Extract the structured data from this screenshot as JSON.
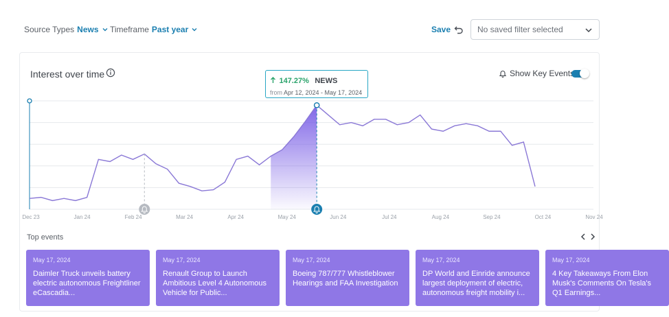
{
  "filters": {
    "source": {
      "label": "Source Types",
      "value": "News"
    },
    "timeframe": {
      "label": "Timeframe",
      "value": "Past year"
    }
  },
  "save_label": "Save",
  "saved_filter": {
    "value": "No saved filter selected"
  },
  "card": {
    "title": "Interest over time",
    "key_events_label": "Show Key Events",
    "key_events_enabled": true
  },
  "tooltip": {
    "change": "147.27%",
    "source": "NEWS",
    "from_label": "from",
    "range": "Apr 12, 2024 - May 17, 2024"
  },
  "chart_data": {
    "type": "line",
    "x_ticks": [
      "Dec 23",
      "Jan 24",
      "Feb 24",
      "Mar 24",
      "Apr 24",
      "May 24",
      "Jun 24",
      "Jul 24",
      "Aug 24",
      "Sep 24",
      "Oct 24",
      "Nov 24"
    ],
    "ylim": [
      0,
      100
    ],
    "grid": true,
    "series": [
      {
        "values": [
          10,
          11,
          8,
          10,
          8,
          11,
          46,
          44,
          50,
          46,
          51,
          42,
          37,
          24,
          21,
          17,
          18,
          25,
          46,
          49,
          41,
          49,
          55,
          67,
          81,
          96,
          87,
          78,
          80,
          77,
          83,
          83,
          78,
          80,
          87,
          74,
          72,
          77,
          79,
          77,
          72,
          72,
          59,
          62,
          21
        ]
      }
    ],
    "highlight_range": [
      21,
      25
    ],
    "peak_index": 25,
    "event_marker_indices": [
      10,
      25
    ]
  },
  "colors": {
    "line": "#8a78d6",
    "fill": "#7a5fe6",
    "accent": "#1b7fb0",
    "card": "#8f77e6",
    "tooltip_border": "#27a6c4",
    "positive": "#2aa36b"
  },
  "events": {
    "title": "Top events",
    "items": [
      {
        "date": "May 17, 2024",
        "headline": "Daimler Truck unveils battery electric autonomous Freightliner eCascadia..."
      },
      {
        "date": "May 17, 2024",
        "headline": "Renault Group to Launch Ambitious Level 4 Autonomous Vehicle for Public..."
      },
      {
        "date": "May 17, 2024",
        "headline": "Boeing 787/777 Whistleblower Hearings and FAA Investigation"
      },
      {
        "date": "May 17, 2024",
        "headline": "DP World and Einride announce largest deployment of electric, autonomous freight mobility i..."
      },
      {
        "date": "May 17, 2024",
        "headline": "4 Key Takeaways From Elon Musk's Comments On Tesla's Q1 Earnings..."
      }
    ]
  }
}
